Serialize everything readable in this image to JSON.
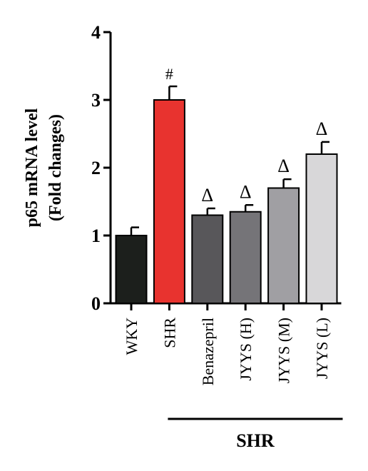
{
  "chart_data": {
    "type": "bar",
    "ylabel_line1": "p65 mRNA level",
    "ylabel_line2": "(Fold changes)",
    "ylim": [
      0,
      4
    ],
    "yticks": [
      0,
      1,
      2,
      3,
      4
    ],
    "categories": [
      "WKY",
      "SHR",
      "Benazepril",
      "JYYS (H)",
      "JYYS (M)",
      "JYYS (L)"
    ],
    "values": [
      1.0,
      3.0,
      1.3,
      1.35,
      1.7,
      2.2
    ],
    "errors": [
      0.12,
      0.2,
      0.1,
      0.1,
      0.13,
      0.18
    ],
    "annotations": [
      "",
      "#",
      "Δ",
      "Δ",
      "Δ",
      "Δ"
    ],
    "colors": [
      "#1c1f1c",
      "#e8332f",
      "#58575a",
      "#757478",
      "#a09fa3",
      "#d8d7d9"
    ],
    "group_label": "SHR",
    "group_span": [
      "SHR",
      "JYYS (L)"
    ]
  }
}
